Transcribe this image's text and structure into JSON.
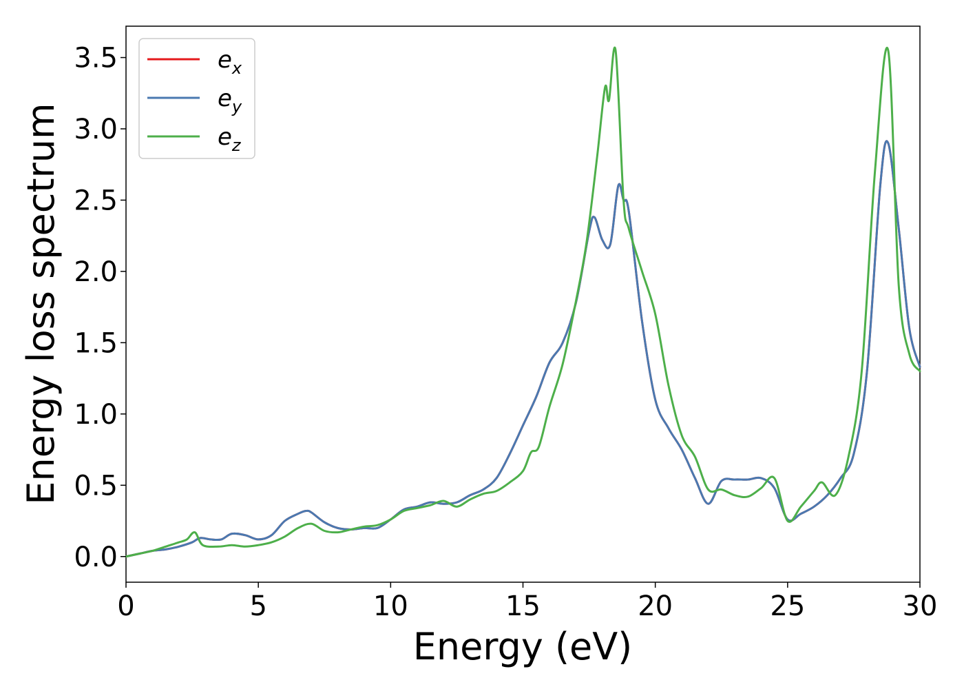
{
  "chart_data": {
    "type": "line",
    "title": "",
    "xlabel": "Energy (eV)",
    "ylabel": "Energy loss spectrum",
    "xlim": [
      0,
      30
    ],
    "ylim": [
      -0.18,
      3.72
    ],
    "xticks": [
      0,
      5,
      10,
      15,
      20,
      25,
      30
    ],
    "xtick_labels": [
      "0",
      "5",
      "10",
      "15",
      "20",
      "25",
      "30"
    ],
    "yticks": [
      0.0,
      0.5,
      1.0,
      1.5,
      2.0,
      2.5,
      3.0,
      3.5
    ],
    "ytick_labels": [
      "0.0",
      "0.5",
      "1.0",
      "1.5",
      "2.0",
      "2.5",
      "3.0",
      "3.5"
    ],
    "grid": false,
    "legend_position": "top-left",
    "series": [
      {
        "name": "e_x",
        "base": "e",
        "sub": "x",
        "color": "#e41a1c",
        "x": [
          0,
          0.5,
          1,
          1.5,
          2,
          2.5,
          2.8,
          3.2,
          3.6,
          4,
          4.5,
          5,
          5.5,
          6,
          6.5,
          6.8,
          7,
          7.5,
          8,
          8.5,
          9,
          9.5,
          10,
          10.5,
          11,
          11.5,
          12,
          12.5,
          13,
          13.5,
          14,
          14.5,
          15,
          15.5,
          16,
          16.5,
          17,
          17.5,
          17.7,
          18,
          18.3,
          18.6,
          18.8,
          19,
          19.5,
          20,
          20.5,
          21,
          21.5,
          22,
          22.5,
          23,
          23.5,
          24,
          24.5,
          25,
          25.5,
          26,
          26.5,
          27,
          27.5,
          28,
          28.5,
          28.8,
          29.2,
          29.6,
          30
        ],
        "y": [
          0,
          0.02,
          0.04,
          0.05,
          0.07,
          0.1,
          0.13,
          0.12,
          0.12,
          0.16,
          0.15,
          0.12,
          0.15,
          0.25,
          0.3,
          0.32,
          0.31,
          0.24,
          0.2,
          0.19,
          0.2,
          0.2,
          0.26,
          0.33,
          0.35,
          0.38,
          0.37,
          0.38,
          0.43,
          0.47,
          0.55,
          0.72,
          0.92,
          1.12,
          1.36,
          1.5,
          1.78,
          2.28,
          2.38,
          2.22,
          2.19,
          2.6,
          2.5,
          2.42,
          1.65,
          1.1,
          0.9,
          0.75,
          0.55,
          0.37,
          0.53,
          0.54,
          0.54,
          0.55,
          0.48,
          0.26,
          0.3,
          0.35,
          0.43,
          0.55,
          0.72,
          1.3,
          2.6,
          2.9,
          2.3,
          1.6,
          1.33
        ]
      },
      {
        "name": "e_y",
        "base": "e",
        "sub": "y",
        "color": "#4a79b0",
        "x": [
          0,
          0.5,
          1,
          1.5,
          2,
          2.5,
          2.8,
          3.2,
          3.6,
          4,
          4.5,
          5,
          5.5,
          6,
          6.5,
          6.8,
          7,
          7.5,
          8,
          8.5,
          9,
          9.5,
          10,
          10.5,
          11,
          11.5,
          12,
          12.5,
          13,
          13.5,
          14,
          14.5,
          15,
          15.5,
          16,
          16.5,
          17,
          17.5,
          17.7,
          18,
          18.3,
          18.6,
          18.8,
          19,
          19.5,
          20,
          20.5,
          21,
          21.5,
          22,
          22.5,
          23,
          23.5,
          24,
          24.5,
          25,
          25.5,
          26,
          26.5,
          27,
          27.5,
          28,
          28.5,
          28.8,
          29.2,
          29.6,
          30
        ],
        "y": [
          0,
          0.02,
          0.04,
          0.05,
          0.07,
          0.1,
          0.13,
          0.12,
          0.12,
          0.16,
          0.15,
          0.12,
          0.15,
          0.25,
          0.3,
          0.32,
          0.31,
          0.24,
          0.2,
          0.19,
          0.2,
          0.2,
          0.26,
          0.33,
          0.35,
          0.38,
          0.37,
          0.38,
          0.43,
          0.47,
          0.55,
          0.72,
          0.92,
          1.12,
          1.36,
          1.5,
          1.78,
          2.28,
          2.38,
          2.22,
          2.19,
          2.6,
          2.5,
          2.42,
          1.65,
          1.1,
          0.9,
          0.75,
          0.55,
          0.37,
          0.53,
          0.54,
          0.54,
          0.55,
          0.48,
          0.26,
          0.3,
          0.35,
          0.43,
          0.55,
          0.72,
          1.3,
          2.6,
          2.9,
          2.3,
          1.6,
          1.33
        ]
      },
      {
        "name": "e_z",
        "base": "e",
        "sub": "z",
        "color": "#4daf4a",
        "x": [
          0,
          0.5,
          1,
          1.5,
          2,
          2.3,
          2.6,
          2.9,
          3.5,
          4,
          4.5,
          5,
          5.5,
          6,
          6.5,
          7,
          7.5,
          8,
          8.5,
          9,
          9.5,
          10,
          10.5,
          11,
          11.5,
          12,
          12.5,
          13,
          13.5,
          14,
          14.5,
          15,
          15.3,
          15.6,
          16,
          16.5,
          17,
          17.4,
          17.8,
          18.1,
          18.25,
          18.5,
          18.8,
          19,
          19.5,
          20,
          20.5,
          21,
          21.5,
          22,
          22.5,
          23,
          23.5,
          24,
          24.5,
          25,
          25.5,
          26,
          26.3,
          26.8,
          27.3,
          27.8,
          28.3,
          28.8,
          29.2,
          29.6,
          30
        ],
        "y": [
          0,
          0.02,
          0.04,
          0.07,
          0.1,
          0.12,
          0.17,
          0.08,
          0.07,
          0.08,
          0.07,
          0.08,
          0.1,
          0.14,
          0.2,
          0.23,
          0.18,
          0.17,
          0.19,
          0.21,
          0.22,
          0.26,
          0.32,
          0.34,
          0.36,
          0.39,
          0.35,
          0.4,
          0.44,
          0.46,
          0.52,
          0.6,
          0.73,
          0.77,
          1.05,
          1.35,
          1.79,
          2.2,
          2.8,
          3.29,
          3.2,
          3.55,
          2.5,
          2.3,
          2.0,
          1.7,
          1.2,
          0.85,
          0.7,
          0.47,
          0.47,
          0.43,
          0.42,
          0.48,
          0.55,
          0.25,
          0.35,
          0.46,
          0.52,
          0.43,
          0.7,
          1.3,
          2.7,
          3.55,
          1.9,
          1.42,
          1.3
        ]
      }
    ]
  }
}
